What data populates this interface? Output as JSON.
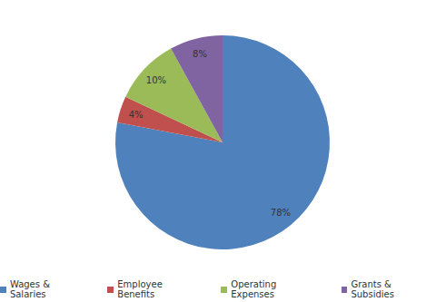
{
  "chart_data": {
    "type": "pie",
    "categories": [
      "Wages & Salaries",
      "Employee Benefits",
      "Operating Expenses",
      "Grants & Subsidies"
    ],
    "values": [
      78,
      4,
      10,
      8
    ],
    "value_labels": [
      "78%",
      "4%",
      "10%",
      "8%"
    ],
    "colors": [
      "#4F81BD",
      "#C0504D",
      "#9BBB59",
      "#8064A2"
    ],
    "data_labels": true,
    "legend": "bottom"
  }
}
